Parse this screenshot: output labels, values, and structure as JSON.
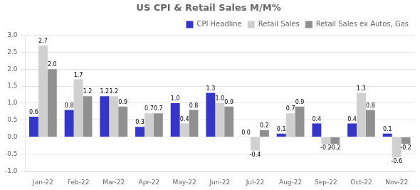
{
  "chart_data": {
    "type": "bar",
    "title": "US CPI & Retail Sales M/M%",
    "categories": [
      "Jan-22",
      "Feb-22",
      "Mar-22",
      "Apr-22",
      "May-22",
      "Jun-22",
      "Jul-22",
      "Aug-22",
      "Sep-22",
      "Oct-22",
      "Nov-22"
    ],
    "series": [
      {
        "name": "CPI Headline",
        "color": "#3535c8",
        "values": [
          0.6,
          0.8,
          1.2,
          0.3,
          1.0,
          1.3,
          0.0,
          0.1,
          0.4,
          0.4,
          0.1
        ],
        "value_labels": [
          "0.6",
          "0.8",
          "1.2",
          "0.3",
          "1.0",
          "1.3",
          "0.0",
          "0.1",
          "0.4",
          "0.4",
          "0.1"
        ]
      },
      {
        "name": "Retail Sales",
        "color": "#d0d0d0",
        "values": [
          2.7,
          1.7,
          1.2,
          0.7,
          0.4,
          1.0,
          -0.4,
          0.7,
          -0.2,
          1.3,
          -0.6
        ],
        "value_labels": [
          "2.7",
          "1.7",
          "1.2",
          "0.7",
          "0.4",
          "1.0",
          "-0.4",
          "0.7",
          "-0.2",
          "1.3",
          "-0.6"
        ]
      },
      {
        "name": "Retail Sales ex Autos, Gas",
        "color": "#909090",
        "values": [
          2.0,
          1.2,
          0.9,
          0.7,
          0.8,
          0.9,
          0.2,
          0.9,
          -0.2,
          0.8,
          -0.2
        ],
        "value_labels": [
          "2.0",
          "1.2",
          "0.9",
          "0.7",
          "0.8",
          "0.9",
          "0.2",
          "0.9",
          "-0.2",
          "0.8",
          "-0.2"
        ]
      }
    ],
    "ylim": [
      -1.0,
      3.0
    ],
    "yticks": [
      {
        "value": -1,
        "label": "-1.0"
      },
      -0.5,
      {
        "value": 0,
        "label": "0.0"
      },
      0.5,
      {
        "value": 1,
        "label": "1.0"
      },
      1.5,
      {
        "value": 2,
        "label": "2.0"
      },
      2.5,
      {
        "value": 3,
        "label": "3.0"
      }
    ],
    "grid": true,
    "legend": "upper right",
    "data_labels": true
  }
}
